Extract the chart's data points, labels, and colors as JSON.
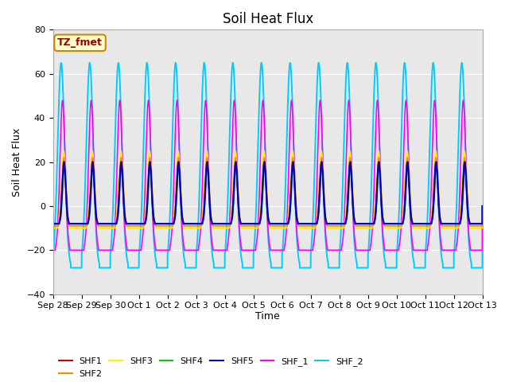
{
  "title": "Soil Heat Flux",
  "ylabel": "Soil Heat Flux",
  "xlabel": "Time",
  "ylim": [
    -40,
    80
  ],
  "tick_labels": [
    "Sep 28",
    "Sep 29",
    "Sep 30",
    "Oct 1",
    "Oct 2",
    "Oct 3",
    "Oct 4",
    "Oct 5",
    "Oct 6",
    "Oct 7",
    "Oct 8",
    "Oct 9",
    "Oct 10",
    "Oct 11",
    "Oct 12",
    "Oct 13"
  ],
  "legend_label": "TZ_fmet",
  "series_order": [
    "SHF_2",
    "SHF_1",
    "SHF3",
    "SHF2",
    "SHF4",
    "SHF1",
    "SHF5"
  ],
  "legend_order": [
    "SHF1",
    "SHF2",
    "SHF3",
    "SHF4",
    "SHF5",
    "SHF_1",
    "SHF_2"
  ],
  "series": {
    "SHF1": {
      "color": "#cc0000",
      "lw": 1.2
    },
    "SHF2": {
      "color": "#ff8800",
      "lw": 1.2
    },
    "SHF3": {
      "color": "#ffee00",
      "lw": 1.2
    },
    "SHF4": {
      "color": "#00cc00",
      "lw": 1.2
    },
    "SHF5": {
      "color": "#0000cc",
      "lw": 1.6
    },
    "SHF_1": {
      "color": "#ff00ff",
      "lw": 1.2
    },
    "SHF_2": {
      "color": "#00ccff",
      "lw": 1.4
    }
  },
  "peak_amp": {
    "SHF1": 20,
    "SHF2": 22,
    "SHF3": 25,
    "SHF4": 18,
    "SHF5": 20,
    "SHF_1": 48,
    "SHF_2": 65
  },
  "neg_amp": {
    "SHF1": -8,
    "SHF2": -9,
    "SHF3": -10,
    "SHF4": -8,
    "SHF5": -8,
    "SHF_1": -20,
    "SHF_2": -28
  },
  "peak_time": {
    "SHF1": 0.38,
    "SHF2": 0.38,
    "SHF3": 0.37,
    "SHF4": 0.39,
    "SHF5": 0.38,
    "SHF_1": 0.33,
    "SHF_2": 0.28
  },
  "peak_width": {
    "SHF1": 0.06,
    "SHF2": 0.07,
    "SHF3": 0.08,
    "SHF4": 0.06,
    "SHF5": 0.06,
    "SHF_1": 0.09,
    "SHF_2": 0.12
  },
  "bg_color": "#e8e8e8",
  "fig_bg": "#ffffff",
  "yticks": [
    -40,
    -20,
    0,
    20,
    40,
    60,
    80
  ],
  "grid_color": "#ffffff",
  "title_fontsize": 12,
  "label_fontsize": 9,
  "tick_fontsize": 8
}
